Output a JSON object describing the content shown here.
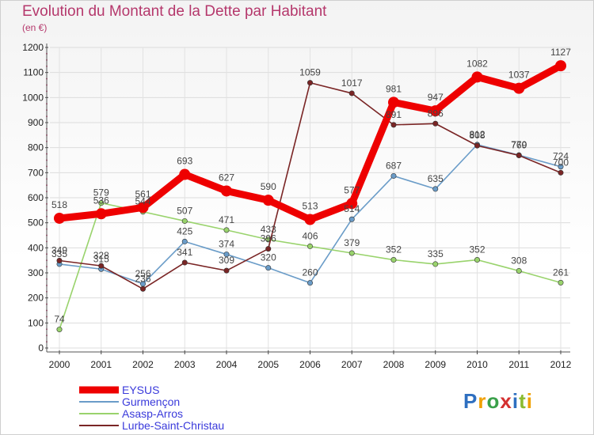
{
  "chart_data": {
    "type": "line",
    "title": "Evolution du Montant de la Dette par Habitant",
    "subtitle": "(en €)",
    "categories": [
      "2000",
      "2001",
      "2002",
      "2003",
      "2004",
      "2005",
      "2006",
      "2007",
      "2008",
      "2009",
      "2010",
      "2011",
      "2012"
    ],
    "ylim": [
      0,
      1200
    ],
    "yticks": [
      0,
      100,
      200,
      300,
      400,
      500,
      600,
      700,
      800,
      900,
      1000,
      1100,
      1200
    ],
    "grid": true,
    "legend_position": "bottom-left",
    "series": [
      {
        "name": "EYSUS",
        "color": "#ee0000",
        "values": [
          518,
          536,
          561,
          693,
          627,
          590,
          513,
          577,
          981,
          947,
          1082,
          1037,
          1127
        ]
      },
      {
        "name": "Gurmençon",
        "color": "#6a9cc8",
        "values": [
          335,
          315,
          256,
          425,
          374,
          320,
          260,
          514,
          687,
          635,
          812,
          770,
          724
        ]
      },
      {
        "name": "Asasp-Arros",
        "color": "#99d36c",
        "values": [
          74,
          579,
          544,
          507,
          471,
          433,
          406,
          379,
          352,
          335,
          352,
          308,
          261
        ]
      },
      {
        "name": "Lurbe-Saint-Christau",
        "color": "#7a2525",
        "values": [
          349,
          328,
          236,
          341,
          309,
          396,
          1059,
          1017,
          891,
          896,
          808,
          769,
          700
        ]
      }
    ]
  },
  "logo": {
    "text": "Proxiti",
    "letters": [
      "P",
      "r",
      "o",
      "x",
      "i",
      "t",
      "i"
    ],
    "colors": [
      "#2e6fc0",
      "#f0a000",
      "#3aa04a",
      "#d43030",
      "#2e6fc0",
      "#8abb30",
      "#f0a000"
    ]
  }
}
